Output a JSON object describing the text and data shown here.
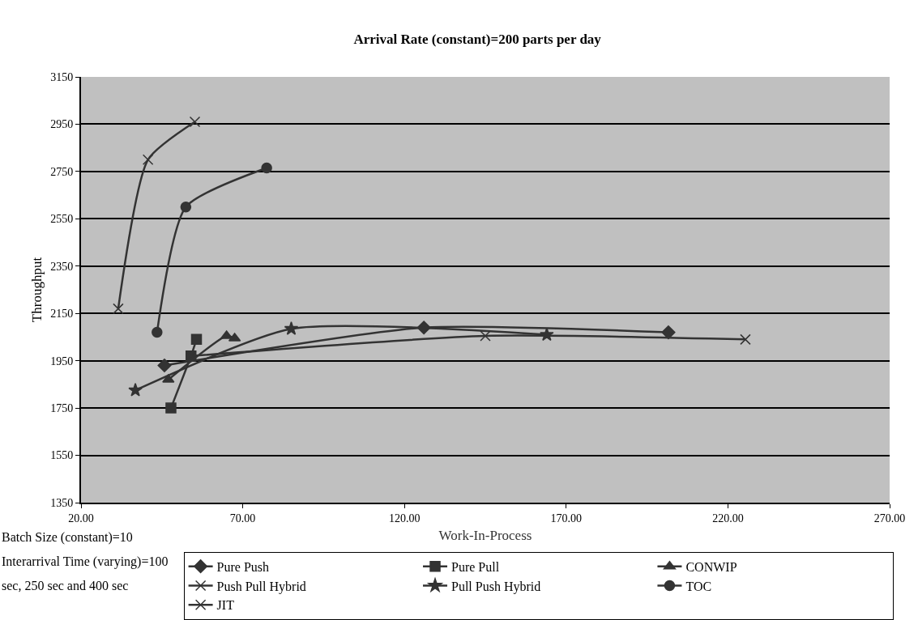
{
  "chart_data": {
    "type": "line",
    "title": "Arrival Rate (constant)=200 parts per day",
    "xlabel": "Work-In-Process",
    "ylabel": "Throughput",
    "xlim": [
      20,
      270
    ],
    "xticks": [
      {
        "value": 20,
        "label": "20.00"
      },
      {
        "value": 70,
        "label": "70.00"
      },
      {
        "value": 120,
        "label": "120.00"
      },
      {
        "value": 170,
        "label": "170.00"
      },
      {
        "value": 220,
        "label": "220.00"
      },
      {
        "value": 270,
        "label": "270.00"
      }
    ],
    "ylim": [
      1350,
      3150
    ],
    "yticks": [
      1350,
      1550,
      1750,
      1950,
      2150,
      2350,
      2550,
      2750,
      2950,
      3150
    ],
    "grid": "y",
    "legend": "bottom",
    "line_style": "solid",
    "series": [
      {
        "name": "Pure Push",
        "color": "#333333",
        "marker": "diamond",
        "x": [
          45.8,
          126,
          201.6
        ],
        "values": [
          1930,
          2090,
          2070
        ]
      },
      {
        "name": "Pure Pull",
        "color": "#333333",
        "marker": "square",
        "x": [
          47.8,
          54,
          55.7
        ],
        "values": [
          1750,
          1970,
          2040
        ]
      },
      {
        "name": "CONWIP",
        "color": "#333333",
        "marker": "triangle",
        "x": [
          47,
          65,
          67.5
        ],
        "values": [
          1870,
          2055,
          2045
        ]
      },
      {
        "name": "Push Pull Hybrid",
        "color": "#333333",
        "marker": "cross",
        "x": [
          54,
          145,
          225.4
        ],
        "values": [
          1970,
          2055,
          2040
        ]
      },
      {
        "name": "Pull Push Hybrid",
        "color": "#333333",
        "marker": "star",
        "x": [
          36.8,
          85,
          164
        ],
        "values": [
          1825,
          2085,
          2060
        ]
      },
      {
        "name": "TOC",
        "color": "#333333",
        "marker": "circle",
        "x": [
          43.5,
          52.4,
          77.4
        ],
        "values": [
          2070,
          2600,
          2765
        ]
      },
      {
        "name": "JIT",
        "color": "#333333",
        "marker": "cross",
        "x": [
          31.5,
          40.7,
          55.2
        ],
        "values": [
          2170,
          2800,
          2960
        ]
      }
    ],
    "annotations": [
      "Batch Size (constant)=10",
      "Interarrival Time (varying)=100",
      "sec, 250 sec and 400 sec"
    ]
  }
}
